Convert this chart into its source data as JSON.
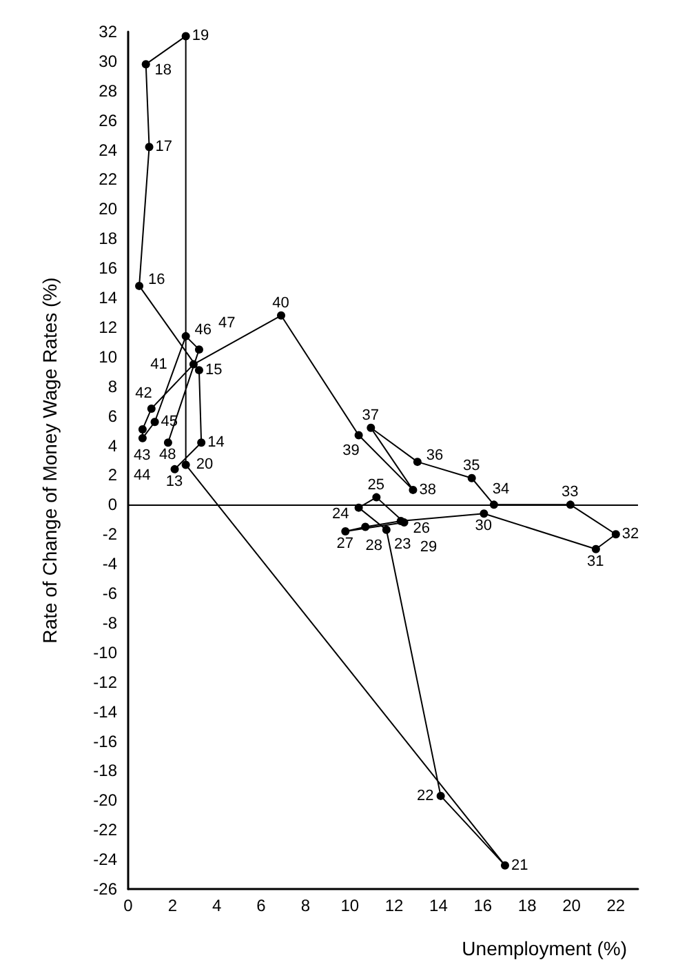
{
  "chart_data": {
    "type": "line",
    "xlabel": "Unemployment (%)",
    "ylabel": "Rate of Change of Money Wage Rates (%)",
    "x": [
      2.1,
      3.3,
      3.2,
      0.5,
      0.95,
      0.8,
      2.6,
      2.6,
      17.0,
      14.1,
      11.65,
      10.4,
      11.2,
      12.45,
      9.8,
      10.7,
      12.3,
      16.05,
      21.1,
      22.0,
      19.95,
      16.5,
      15.5,
      13.05,
      10.95,
      12.85,
      10.4,
      6.9,
      2.95,
      1.05,
      0.65,
      0.65,
      1.2,
      2.6,
      3.2,
      1.8
    ],
    "series": [
      {
        "color": "#000000",
        "values": [
          2.4,
          4.2,
          9.1,
          14.8,
          24.2,
          29.8,
          31.7,
          2.7,
          -24.4,
          -19.7,
          -1.7,
          -0.2,
          0.5,
          -1.2,
          -1.8,
          -1.5,
          -1.1,
          -0.6,
          -3.0,
          -2.0,
          0,
          0,
          1.8,
          2.9,
          5.2,
          1.0,
          4.7,
          12.8,
          9.5,
          6.5,
          5.1,
          4.5,
          5.6,
          11.4,
          10.5,
          4.2
        ]
      }
    ],
    "xlim": [
      0,
      23
    ],
    "xticks": [
      0,
      2,
      4,
      6,
      8,
      10,
      12,
      14,
      16,
      18,
      20,
      22
    ],
    "ylim": [
      -26,
      32
    ],
    "yticks": [
      -26,
      -24,
      -22,
      -20,
      -18,
      -16,
      -14,
      -12,
      -10,
      -8,
      -6,
      -4,
      -2,
      0,
      2,
      4,
      6,
      8,
      10,
      12,
      14,
      16,
      18,
      20,
      22,
      24,
      26,
      28,
      30,
      32
    ],
    "grid": false,
    "marker": "circle",
    "line_style": "solid",
    "ref_lines": [
      {
        "axis": "y",
        "value": 0,
        "color": "#000000"
      }
    ],
    "annotations": [
      {
        "text": "13",
        "x": 2.1,
        "y": 2.4
      },
      {
        "text": "14",
        "x": 3.3,
        "y": 4.2
      },
      {
        "text": "15",
        "x": 3.2,
        "y": 9.1
      },
      {
        "text": "16",
        "x": 0.5,
        "y": 14.8
      },
      {
        "text": "17",
        "x": 0.95,
        "y": 24.2
      },
      {
        "text": "18",
        "x": 0.8,
        "y": 29.8
      },
      {
        "text": "19",
        "x": 2.6,
        "y": 31.7
      },
      {
        "text": "20",
        "x": 2.6,
        "y": 2.7
      },
      {
        "text": "21",
        "x": 17.0,
        "y": -24.4
      },
      {
        "text": "22",
        "x": 14.1,
        "y": -19.7
      },
      {
        "text": "23",
        "x": 11.65,
        "y": -1.7
      },
      {
        "text": "24",
        "x": 10.4,
        "y": -0.2
      },
      {
        "text": "25",
        "x": 11.2,
        "y": 0.5
      },
      {
        "text": "26",
        "x": 12.45,
        "y": -1.2
      },
      {
        "text": "27",
        "x": 9.8,
        "y": -1.8
      },
      {
        "text": "28",
        "x": 10.7,
        "y": -1.5
      },
      {
        "text": "29",
        "x": 12.3,
        "y": -1.1
      },
      {
        "text": "30",
        "x": 16.05,
        "y": -0.6
      },
      {
        "text": "31",
        "x": 21.1,
        "y": -3.0
      },
      {
        "text": "32",
        "x": 22.0,
        "y": -2.0
      },
      {
        "text": "33",
        "x": 19.95,
        "y": 0
      },
      {
        "text": "34",
        "x": 16.5,
        "y": 0
      },
      {
        "text": "35",
        "x": 15.5,
        "y": 1.8
      },
      {
        "text": "36",
        "x": 13.05,
        "y": 2.9
      },
      {
        "text": "37",
        "x": 10.95,
        "y": 5.2
      },
      {
        "text": "38",
        "x": 12.85,
        "y": 1.0
      },
      {
        "text": "39",
        "x": 10.4,
        "y": 4.7
      },
      {
        "text": "40",
        "x": 6.9,
        "y": 12.8
      },
      {
        "text": "41",
        "x": 2.95,
        "y": 9.5
      },
      {
        "text": "42",
        "x": 1.05,
        "y": 6.5
      },
      {
        "text": "43",
        "x": 0.65,
        "y": 5.1
      },
      {
        "text": "44",
        "x": 0.65,
        "y": 4.5
      },
      {
        "text": "45",
        "x": 1.2,
        "y": 5.6
      },
      {
        "text": "46",
        "x": 2.6,
        "y": 11.4
      },
      {
        "text": "47",
        "x": 3.2,
        "y": 10.5
      },
      {
        "text": "48",
        "x": 1.8,
        "y": 4.2
      }
    ]
  }
}
